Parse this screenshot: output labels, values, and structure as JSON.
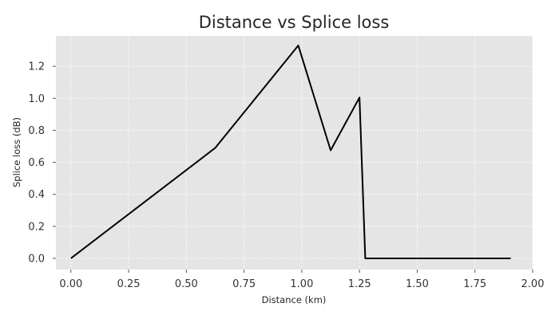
{
  "chart_data": {
    "type": "line",
    "title": "Distance vs Splice loss",
    "xlabel": "Distance (km)",
    "ylabel": "Splice loss (dB)",
    "xlim": [
      -0.065,
      2.0
    ],
    "ylim": [
      -0.07,
      1.39
    ],
    "xticks": [
      0.0,
      0.25,
      0.5,
      0.75,
      1.0,
      1.25,
      1.5,
      1.75,
      2.0
    ],
    "xtick_labels": [
      "0.00",
      "0.25",
      "0.50",
      "0.75",
      "1.00",
      "1.25",
      "1.50",
      "1.75",
      "2.00"
    ],
    "yticks": [
      0.0,
      0.2,
      0.4,
      0.6,
      0.8,
      1.0,
      1.2
    ],
    "ytick_labels": [
      "0.0",
      "0.2",
      "0.4",
      "0.6",
      "0.8",
      "1.0",
      "1.2"
    ],
    "grid": true,
    "background": "#e5e5e5",
    "line_color": "#000000",
    "series": [
      {
        "x": [
          0.0,
          0.625,
          0.985,
          1.125,
          1.25,
          1.275,
          1.905
        ],
        "y": [
          0.0,
          0.69,
          1.33,
          0.675,
          1.005,
          0.0,
          0.0
        ]
      }
    ]
  }
}
